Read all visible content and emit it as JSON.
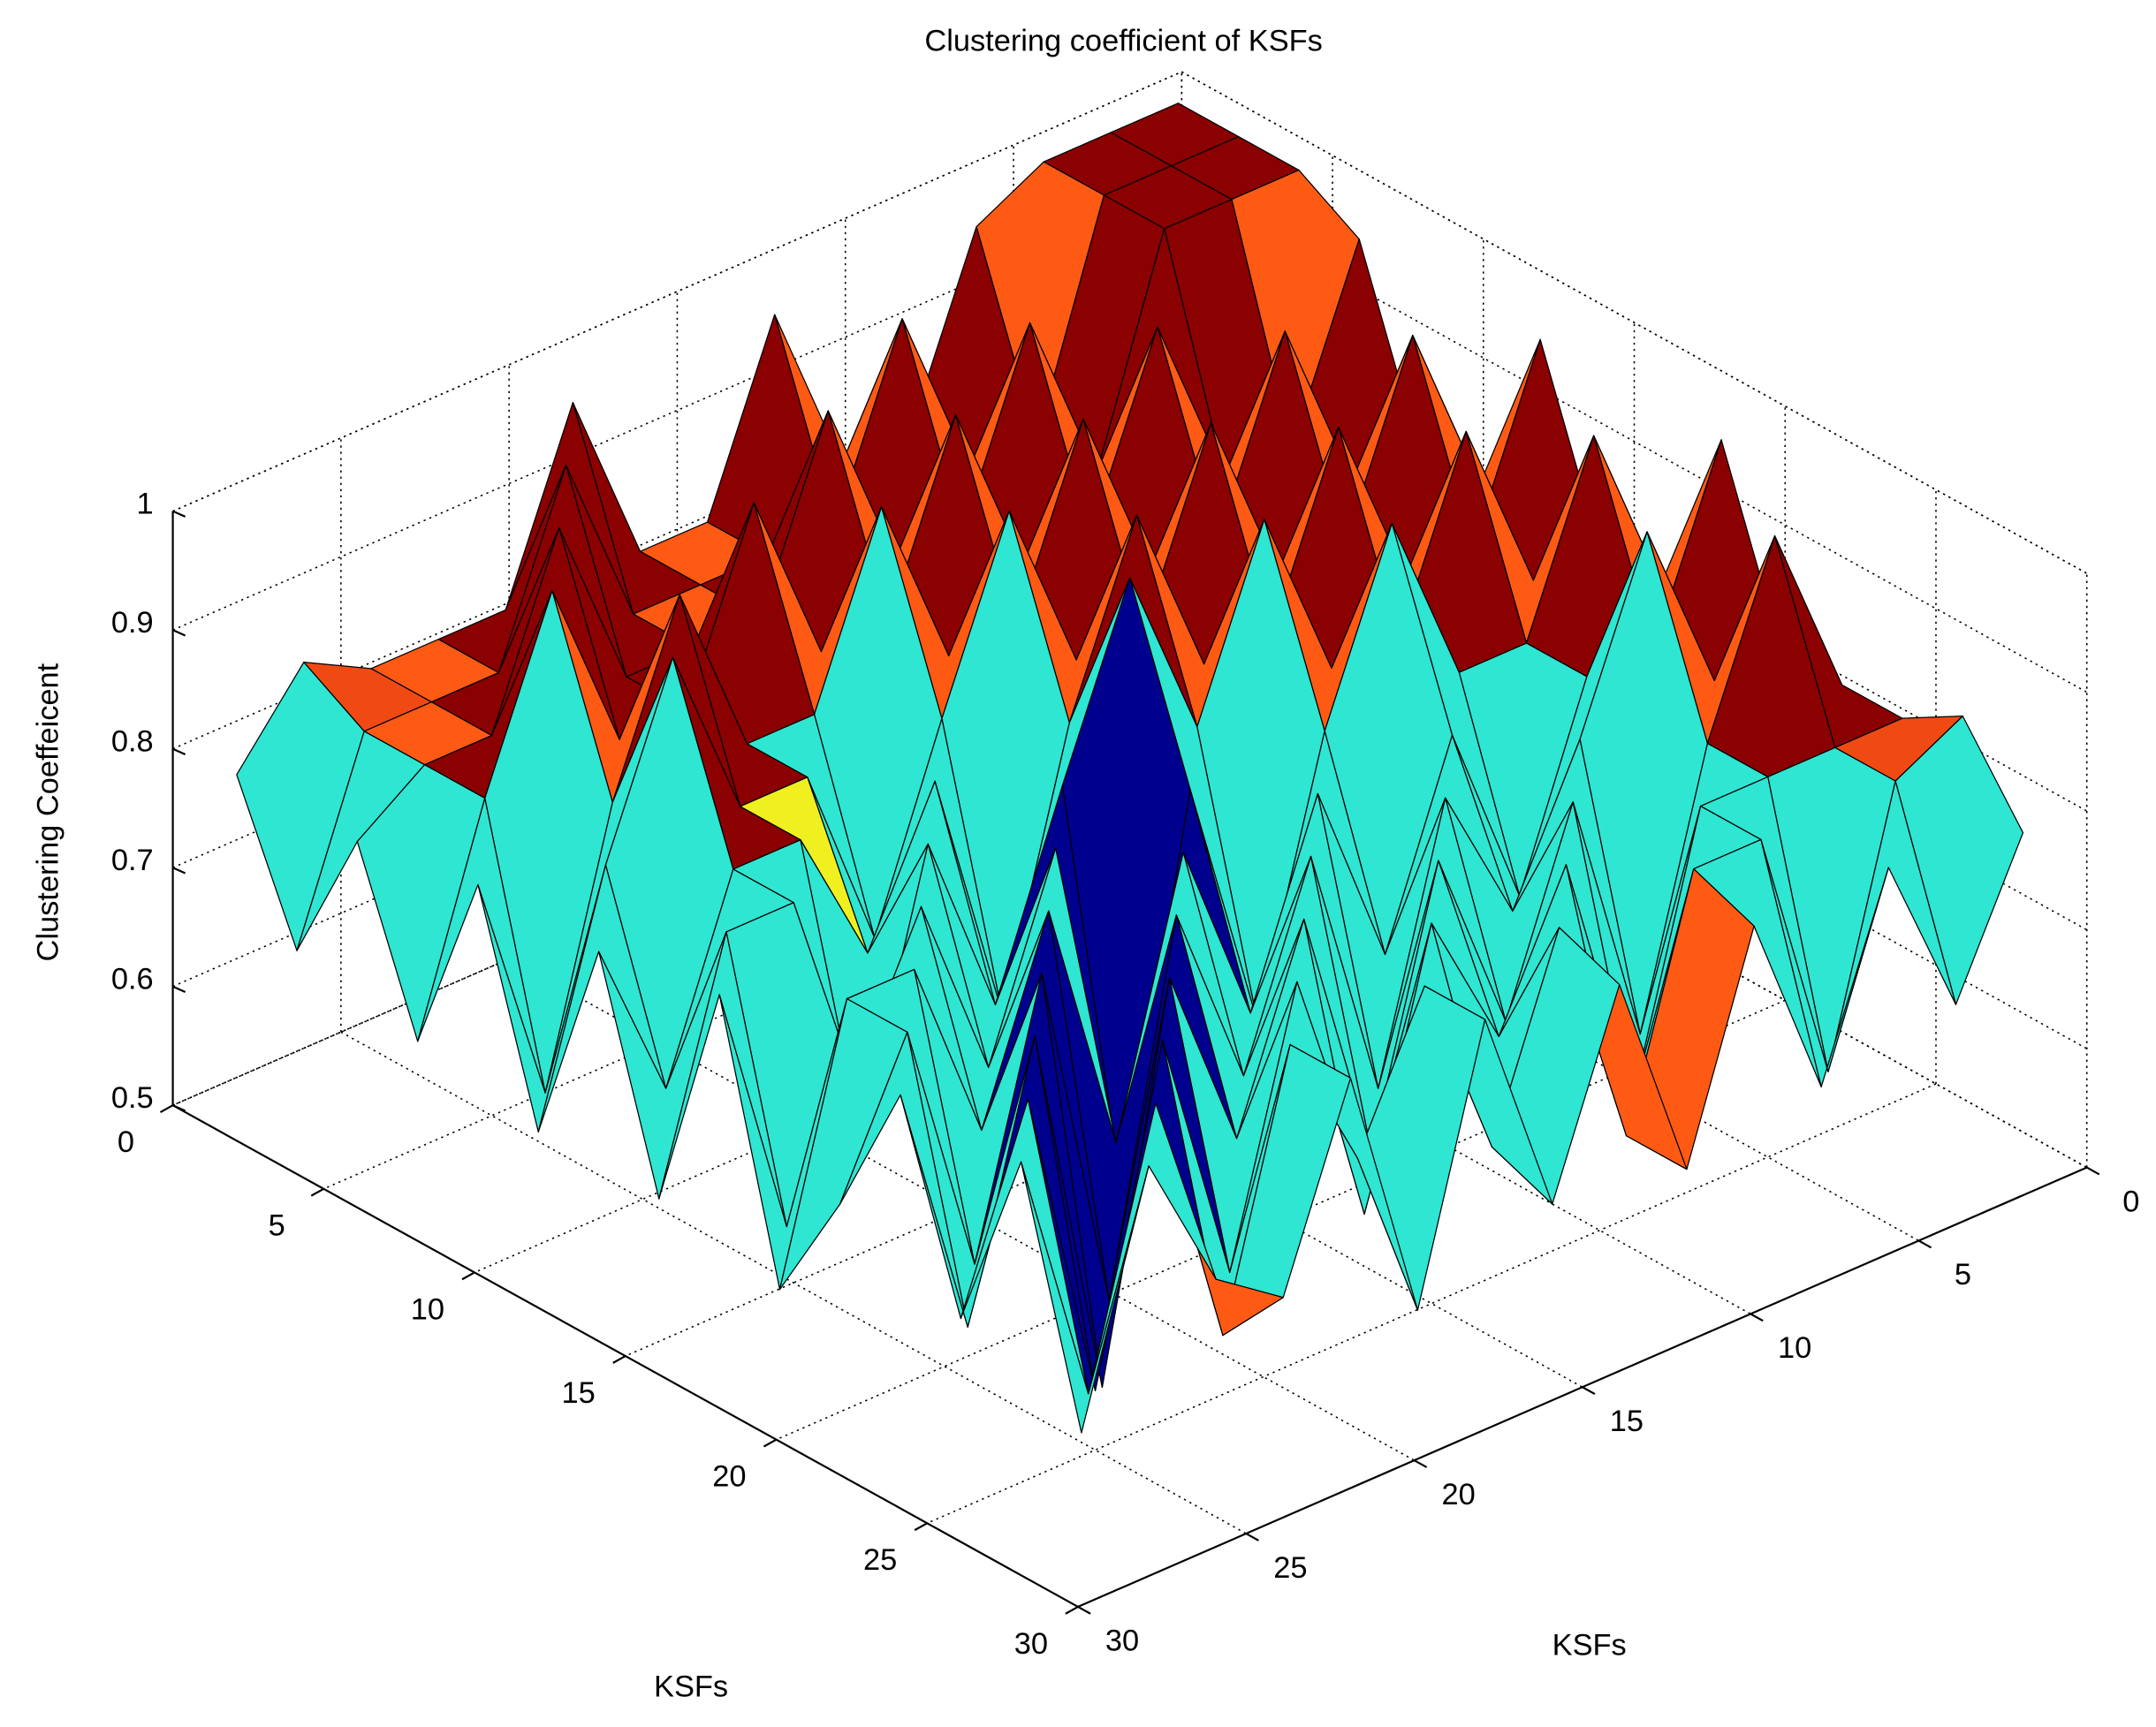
{
  "chart_data": {
    "type": "surface",
    "title": "Clustering coefficient of KSFs",
    "xlabel": "KSFs",
    "ylabel": "KSFs",
    "zlabel": "Clustering Coeffeicent",
    "x": [
      1,
      3,
      5,
      7,
      9,
      11,
      13,
      15,
      17,
      19,
      21,
      23,
      25,
      27,
      29
    ],
    "y": [
      1,
      3,
      5,
      7,
      9,
      11,
      13,
      15,
      17,
      19,
      21,
      23,
      25,
      27,
      29
    ],
    "z": [
      [
        1,
        1,
        1,
        0.97,
        0.82,
        0.82,
        0.97,
        0.82,
        0.82,
        0.97,
        0.82,
        0.82,
        0.82,
        0.85,
        0.78
      ],
      [
        1,
        1,
        1,
        0.82,
        0.82,
        0.97,
        0.82,
        0.82,
        0.82,
        0.82,
        0.97,
        0.82,
        0.82,
        0.82,
        0.66
      ],
      [
        1,
        1,
        1,
        0.82,
        0.97,
        0.82,
        0.82,
        0.97,
        0.82,
        0.82,
        0.82,
        0.97,
        0.82,
        0.82,
        0.78
      ],
      [
        0.97,
        0.82,
        0.82,
        0.97,
        0.82,
        0.82,
        0.97,
        0.82,
        0.82,
        0.97,
        0.82,
        0.82,
        0.97,
        0.82,
        0.64
      ],
      [
        0.82,
        0.82,
        0.97,
        0.82,
        0.82,
        0.97,
        0.82,
        0.82,
        0.97,
        0.82,
        0.82,
        0.97,
        0.82,
        0.6,
        0.8
      ],
      [
        0.82,
        0.97,
        0.82,
        0.82,
        0.97,
        0.82,
        0.82,
        0.97,
        0.82,
        0.66,
        0.82,
        0.82,
        0.97,
        0.82,
        0.62
      ],
      [
        0.97,
        0.82,
        0.82,
        0.97,
        0.82,
        0.82,
        0.97,
        0.82,
        0.6,
        0.82,
        0.7,
        0.82,
        0.82,
        0.66,
        0.8
      ],
      [
        0.82,
        0.82,
        0.97,
        0.82,
        0.82,
        0.97,
        0.82,
        0.97,
        0.82,
        0.66,
        0.82,
        0.6,
        0.82,
        0.82,
        0.62
      ],
      [
        0.82,
        0.97,
        0.82,
        0.82,
        0.97,
        0.82,
        0.6,
        0.82,
        0.5,
        0.82,
        0.66,
        0.82,
        0.7,
        0.6,
        0.82
      ],
      [
        0.97,
        0.82,
        0.82,
        0.66,
        0.82,
        0.66,
        0.82,
        0.66,
        0.82,
        0.6,
        0.82,
        0.66,
        0.82,
        0.82,
        0.6
      ],
      [
        0.82,
        0.82,
        0.97,
        0.82,
        0.7,
        0.82,
        0.6,
        0.82,
        0.66,
        0.82,
        0.52,
        0.82,
        0.6,
        0.82,
        0.7
      ],
      [
        0.82,
        0.97,
        0.82,
        0.6,
        0.82,
        0.66,
        0.82,
        0.6,
        0.82,
        0.66,
        0.82,
        0.5,
        0.82,
        0.6,
        0.82
      ],
      [
        0.82,
        0.82,
        0.82,
        0.82,
        0.6,
        0.82,
        0.7,
        0.82,
        0.6,
        0.82,
        0.6,
        0.82,
        0.55,
        0.82,
        0.66
      ],
      [
        0.85,
        0.82,
        0.6,
        0.82,
        0.82,
        0.62,
        0.82,
        0.66,
        0.82,
        0.7,
        0.82,
        0.6,
        0.82,
        0.6,
        0.82
      ],
      [
        0.78,
        0.66,
        0.8,
        0.64,
        0.8,
        0.62,
        0.8,
        0.64,
        0.82,
        0.6,
        0.82,
        0.66,
        0.7,
        0.82,
        0.62
      ]
    ],
    "xlim": [
      0,
      30
    ],
    "ylim": [
      0,
      30
    ],
    "zlim": [
      0.5,
      1
    ],
    "xticks": [
      0,
      5,
      10,
      15,
      20,
      25,
      30
    ],
    "yticks": [
      0,
      5,
      10,
      15,
      20,
      25,
      30
    ],
    "zticks": [
      0.5,
      0.6,
      0.7,
      0.8,
      0.9,
      1
    ],
    "grid": true,
    "colormap": [
      "#00008f",
      "#2ee6d2",
      "#f0f020",
      "#ff5a14",
      "#f04a14",
      "#8b0000"
    ]
  }
}
